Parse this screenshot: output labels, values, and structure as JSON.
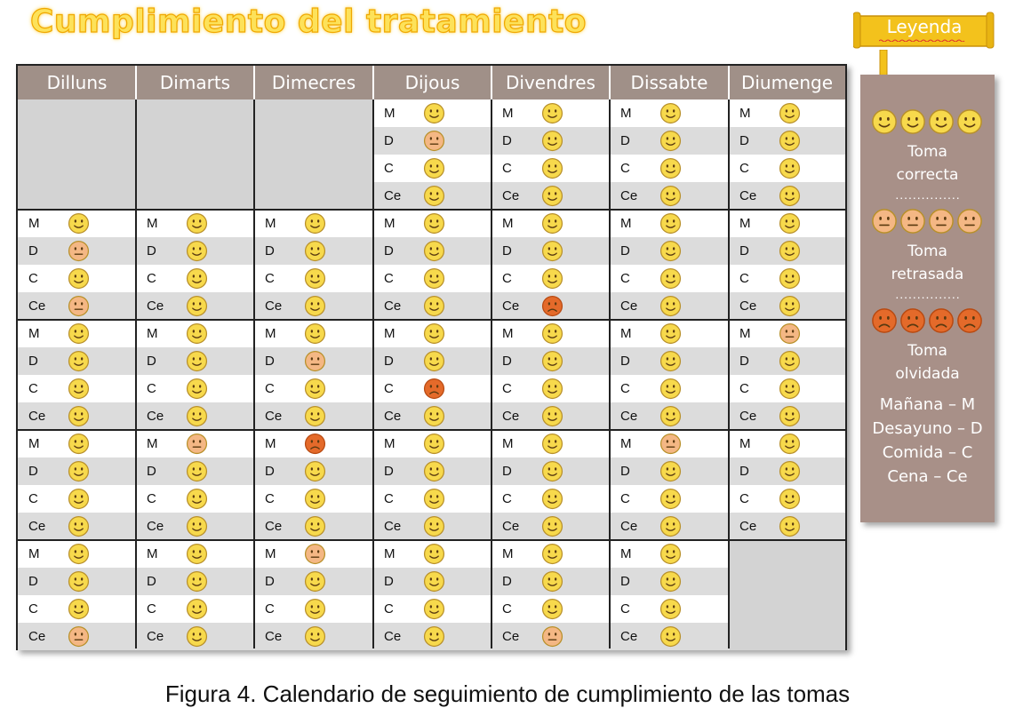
{
  "title": "Cumplimiento del tratamiento",
  "legend_tag": "Leyenda",
  "days": [
    "Dilluns",
    "Dimarts",
    "Dimecres",
    "Dijous",
    "Divendres",
    "Dissabte",
    "Diumenge"
  ],
  "meal_labels": [
    "M",
    "D",
    "C",
    "Ce"
  ],
  "status_codes": {
    "ok": "Toma correcta",
    "late": "Toma retrasada",
    "missed": "Toma olvidada"
  },
  "colors": {
    "header_bg": "#a09088",
    "ok_face": "#f7d94c",
    "late_face": "#f4b784",
    "missed_face": "#e46a2a",
    "legend_bg": "#a89088",
    "title_fill": "#fde25a"
  },
  "weeks": [
    [
      null,
      null,
      null,
      [
        "ok",
        "late",
        "ok",
        "ok"
      ],
      [
        "ok",
        "ok",
        "ok",
        "ok"
      ],
      [
        "ok",
        "ok",
        "ok",
        "ok"
      ],
      [
        "ok",
        "ok",
        "ok",
        "ok"
      ]
    ],
    [
      [
        "ok",
        "late",
        "ok",
        "late"
      ],
      [
        "ok",
        "ok",
        "ok",
        "ok"
      ],
      [
        "ok",
        "ok",
        "ok",
        "ok"
      ],
      [
        "ok",
        "ok",
        "ok",
        "ok"
      ],
      [
        "ok",
        "ok",
        "ok",
        "missed"
      ],
      [
        "ok",
        "ok",
        "ok",
        "ok"
      ],
      [
        "ok",
        "ok",
        "ok",
        "ok"
      ]
    ],
    [
      [
        "ok",
        "ok",
        "ok",
        "ok"
      ],
      [
        "ok",
        "ok",
        "ok",
        "ok"
      ],
      [
        "ok",
        "late",
        "ok",
        "ok"
      ],
      [
        "ok",
        "ok",
        "missed",
        "ok"
      ],
      [
        "ok",
        "ok",
        "ok",
        "ok"
      ],
      [
        "ok",
        "ok",
        "ok",
        "ok"
      ],
      [
        "late",
        "ok",
        "ok",
        "ok"
      ]
    ],
    [
      [
        "ok",
        "ok",
        "ok",
        "ok"
      ],
      [
        "late",
        "ok",
        "ok",
        "ok"
      ],
      [
        "missed",
        "ok",
        "ok",
        "ok"
      ],
      [
        "ok",
        "ok",
        "ok",
        "ok"
      ],
      [
        "ok",
        "ok",
        "ok",
        "ok"
      ],
      [
        "late",
        "ok",
        "ok",
        "ok"
      ],
      [
        "ok",
        "ok",
        "ok",
        "ok"
      ]
    ],
    [
      [
        "ok",
        "ok",
        "ok",
        "late"
      ],
      [
        "ok",
        "ok",
        "ok",
        "ok"
      ],
      [
        "late",
        "ok",
        "ok",
        "ok"
      ],
      [
        "ok",
        "ok",
        "ok",
        "ok"
      ],
      [
        "ok",
        "ok",
        "ok",
        "late"
      ],
      [
        "ok",
        "ok",
        "ok",
        "ok"
      ],
      null
    ]
  ],
  "legend": {
    "items": [
      {
        "status": "ok",
        "line1": "Toma",
        "line2": "correcta"
      },
      {
        "status": "late",
        "line1": "Toma",
        "line2": "retrasada"
      },
      {
        "status": "missed",
        "line1": "Toma",
        "line2": "olvidada"
      }
    ],
    "dots": "...............",
    "abbreviations": [
      "Mañana – M",
      "Desayuno – D",
      "Comida – C",
      "Cena – Ce"
    ]
  },
  "caption": "Figura 4. Calendario de seguimiento de cumplimiento de las tomas"
}
